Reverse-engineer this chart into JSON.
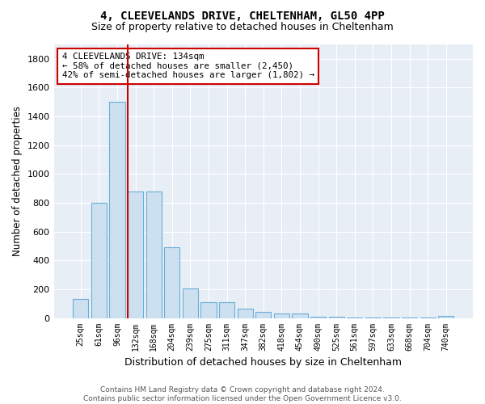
{
  "title1": "4, CLEEVELANDS DRIVE, CHELTENHAM, GL50 4PP",
  "title2": "Size of property relative to detached houses in Cheltenham",
  "xlabel": "Distribution of detached houses by size in Cheltenham",
  "ylabel": "Number of detached properties",
  "bar_labels": [
    "25sqm",
    "61sqm",
    "96sqm",
    "132sqm",
    "168sqm",
    "204sqm",
    "239sqm",
    "275sqm",
    "311sqm",
    "347sqm",
    "382sqm",
    "418sqm",
    "454sqm",
    "490sqm",
    "525sqm",
    "561sqm",
    "597sqm",
    "633sqm",
    "668sqm",
    "704sqm",
    "740sqm"
  ],
  "bar_values": [
    130,
    800,
    1500,
    880,
    880,
    490,
    205,
    110,
    110,
    65,
    40,
    30,
    30,
    10,
    10,
    5,
    5,
    3,
    3,
    2,
    15
  ],
  "bar_color": "#cce0f0",
  "bar_edgecolor": "#6aaed6",
  "vline_color": "#cc0000",
  "annotation_title": "4 CLEEVELANDS DRIVE: 134sqm",
  "annotation_line1": "← 58% of detached houses are smaller (2,450)",
  "annotation_line2": "42% of semi-detached houses are larger (1,802) →",
  "annotation_box_facecolor": "#ffffff",
  "annotation_box_edgecolor": "#cc0000",
  "bg_color": "#e8eef6",
  "footer": "Contains HM Land Registry data © Crown copyright and database right 2024.\nContains public sector information licensed under the Open Government Licence v3.0.",
  "ylim": [
    0,
    1900
  ],
  "yticks": [
    0,
    200,
    400,
    600,
    800,
    1000,
    1200,
    1400,
    1600,
    1800
  ]
}
